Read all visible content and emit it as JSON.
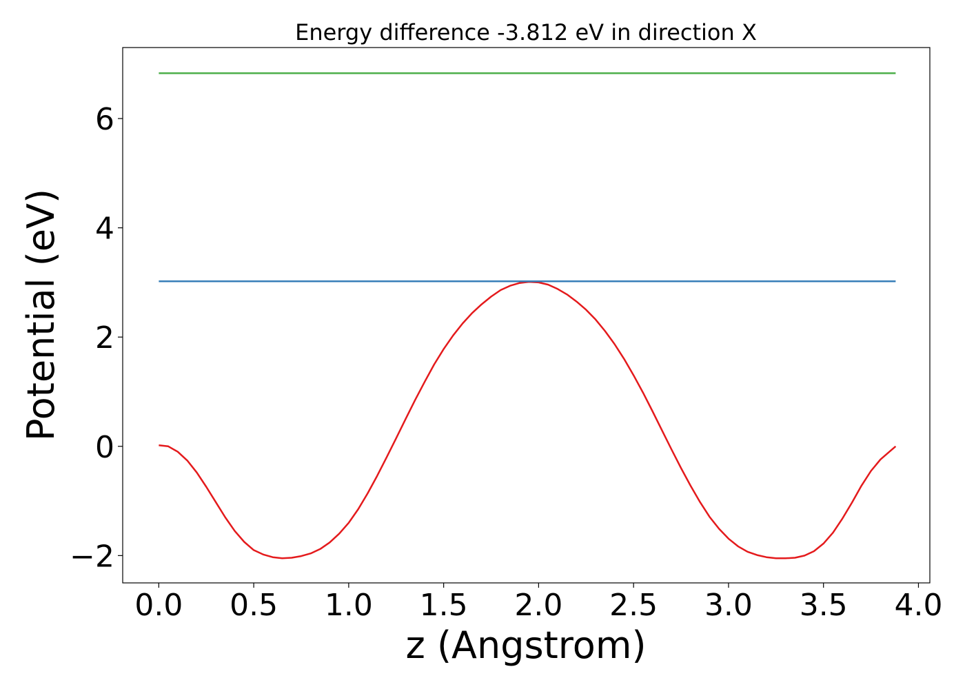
{
  "chart_data": {
    "type": "line",
    "title": "Energy difference -3.812 eV in direction X",
    "xlabel": "z (Angstrom)",
    "ylabel": "Potential (eV)",
    "xlim": [
      -0.19,
      4.06
    ],
    "ylim": [
      -2.5,
      7.3
    ],
    "xticks": [
      0.0,
      0.5,
      1.0,
      1.5,
      2.0,
      2.5,
      3.0,
      3.5,
      4.0
    ],
    "xtick_labels": [
      "0.0",
      "0.5",
      "1.0",
      "1.5",
      "2.0",
      "2.5",
      "3.0",
      "3.5",
      "4.0"
    ],
    "yticks": [
      -2,
      0,
      2,
      4,
      6
    ],
    "ytick_labels": [
      "−2",
      "0",
      "2",
      "4",
      "6"
    ],
    "grid": false,
    "legend": "none",
    "series": [
      {
        "color": "#e41a1c",
        "x": [
          0.0,
          0.05,
          0.1,
          0.15,
          0.2,
          0.25,
          0.3,
          0.35,
          0.4,
          0.45,
          0.5,
          0.55,
          0.6,
          0.65,
          0.7,
          0.75,
          0.8,
          0.85,
          0.9,
          0.95,
          1.0,
          1.05,
          1.1,
          1.15,
          1.2,
          1.25,
          1.3,
          1.35,
          1.4,
          1.45,
          1.5,
          1.55,
          1.6,
          1.65,
          1.7,
          1.75,
          1.8,
          1.85,
          1.9,
          1.95,
          2.0,
          2.05,
          2.1,
          2.15,
          2.2,
          2.25,
          2.3,
          2.35,
          2.4,
          2.45,
          2.5,
          2.55,
          2.6,
          2.65,
          2.7,
          2.75,
          2.8,
          2.85,
          2.9,
          2.95,
          3.0,
          3.05,
          3.1,
          3.15,
          3.2,
          3.25,
          3.3,
          3.35,
          3.4,
          3.45,
          3.5,
          3.55,
          3.6,
          3.65,
          3.7,
          3.75,
          3.8,
          3.85,
          3.88
        ],
        "y": [
          0.02,
          0.0,
          -0.1,
          -0.26,
          -0.48,
          -0.74,
          -1.02,
          -1.3,
          -1.55,
          -1.75,
          -1.9,
          -1.98,
          -2.03,
          -2.05,
          -2.04,
          -2.01,
          -1.96,
          -1.88,
          -1.76,
          -1.6,
          -1.4,
          -1.15,
          -0.86,
          -0.54,
          -0.2,
          0.15,
          0.5,
          0.85,
          1.18,
          1.5,
          1.78,
          2.03,
          2.25,
          2.44,
          2.6,
          2.74,
          2.86,
          2.94,
          2.99,
          3.01,
          3.0,
          2.96,
          2.88,
          2.78,
          2.65,
          2.5,
          2.32,
          2.11,
          1.87,
          1.6,
          1.3,
          0.98,
          0.64,
          0.29,
          -0.06,
          -0.4,
          -0.72,
          -1.02,
          -1.29,
          -1.51,
          -1.69,
          -1.83,
          -1.93,
          -1.99,
          -2.03,
          -2.05,
          -2.05,
          -2.04,
          -2.0,
          -1.92,
          -1.78,
          -1.58,
          -1.32,
          -1.03,
          -0.72,
          -0.45,
          -0.24,
          -0.09,
          0.0
        ]
      },
      {
        "color": "#377eb8",
        "x": [
          0.0,
          3.88
        ],
        "y": [
          3.02,
          3.02
        ]
      },
      {
        "color": "#4daf4a",
        "x": [
          0.0,
          3.88
        ],
        "y": [
          6.83,
          6.83
        ]
      }
    ]
  }
}
